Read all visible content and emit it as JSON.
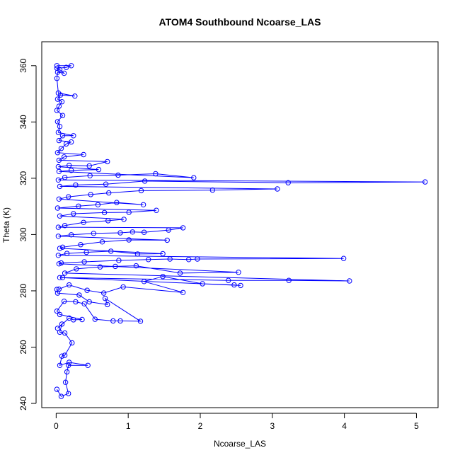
{
  "chart_data": {
    "type": "line",
    "title": "ATOM4 Southbound Ncoarse_LAS",
    "xlabel": "Ncoarse_LAS",
    "ylabel": "Theta (K)",
    "xlim": [
      -0.2,
      5.3
    ],
    "ylim": [
      238.5,
      368.5
    ],
    "x_ticks": [
      0,
      1,
      2,
      3,
      4,
      5
    ],
    "y_ticks": [
      240,
      260,
      280,
      300,
      320,
      340,
      360
    ],
    "x_tick_labels": [
      "0",
      "1",
      "2",
      "3",
      "4",
      "5"
    ],
    "y_tick_labels": [
      "240",
      "260",
      "280",
      "300",
      "320",
      "340",
      "360"
    ],
    "series": [
      {
        "color": "#0000ff",
        "marker": "circle-open",
        "line": true,
        "points": [
          [
            0.01,
            245
          ],
          [
            0.07,
            242.5
          ],
          [
            0.17,
            243.5
          ],
          [
            0.13,
            247.5
          ],
          [
            0.15,
            251.2
          ],
          [
            0.17,
            253.5
          ],
          [
            0.44,
            253.5
          ],
          [
            0.18,
            254.6
          ],
          [
            0.05,
            253.5
          ],
          [
            0.08,
            256.8
          ],
          [
            0.12,
            257.1
          ],
          [
            0.22,
            261.5
          ],
          [
            0.12,
            265
          ],
          [
            0.05,
            265.3
          ],
          [
            0.08,
            268.2
          ],
          [
            0.02,
            266.7
          ],
          [
            0.18,
            270.3
          ],
          [
            0.24,
            269.7
          ],
          [
            0.36,
            269.8
          ],
          [
            0.05,
            271.6
          ],
          [
            0.01,
            272.8
          ],
          [
            0.11,
            276.3
          ],
          [
            0.27,
            276.1
          ],
          [
            0.39,
            275.4
          ],
          [
            0.54,
            269.9
          ],
          [
            0.79,
            269.3
          ],
          [
            0.89,
            269.3
          ],
          [
            1.17,
            269.2
          ],
          [
            0.68,
            277.3
          ],
          [
            0.71,
            275.1
          ],
          [
            0.46,
            276.1
          ],
          [
            0.32,
            278.5
          ],
          [
            0.02,
            279.2
          ],
          [
            0.01,
            280.5
          ],
          [
            0.04,
            280.6
          ],
          [
            0.18,
            282.1
          ],
          [
            0.43,
            280.2
          ],
          [
            0.66,
            279.2
          ],
          [
            0.93,
            281.4
          ],
          [
            1.76,
            279.4
          ],
          [
            1.22,
            283.3
          ],
          [
            1.48,
            285.1
          ],
          [
            2.03,
            282.5
          ],
          [
            2.47,
            282.1
          ],
          [
            2.56,
            281.9
          ],
          [
            0.05,
            284.7
          ],
          [
            0.09,
            284.7
          ],
          [
            2.39,
            283.7
          ],
          [
            3.23,
            283.7
          ],
          [
            4.07,
            283.5
          ],
          [
            0.12,
            286.3
          ],
          [
            0.28,
            287.8
          ],
          [
            0.61,
            288.5
          ],
          [
            0.82,
            288.7
          ],
          [
            1.11,
            288.9
          ],
          [
            1.72,
            286.3
          ],
          [
            2.53,
            286.6
          ],
          [
            0.04,
            289.6
          ],
          [
            0.07,
            289.9
          ],
          [
            0.39,
            290.3
          ],
          [
            0.87,
            290.8
          ],
          [
            1.28,
            291.1
          ],
          [
            1.58,
            291.3
          ],
          [
            1.84,
            291.1
          ],
          [
            1.96,
            291.3
          ],
          [
            3.99,
            291.5
          ],
          [
            0.03,
            292.6
          ],
          [
            0.15,
            293.3
          ],
          [
            0.42,
            293.7
          ],
          [
            0.76,
            294.1
          ],
          [
            1.13,
            293.1
          ],
          [
            1.48,
            293.2
          ],
          [
            0.05,
            295.1
          ],
          [
            0.09,
            295.5
          ],
          [
            0.34,
            296.4
          ],
          [
            0.64,
            297.4
          ],
          [
            1.01,
            298.1
          ],
          [
            1.54,
            298.0
          ],
          [
            0.03,
            299.4
          ],
          [
            0.21,
            299.9
          ],
          [
            0.52,
            300.4
          ],
          [
            0.89,
            300.6
          ],
          [
            1.06,
            300.9
          ],
          [
            1.22,
            300.8
          ],
          [
            1.56,
            301.6
          ],
          [
            1.76,
            302.4
          ],
          [
            0.03,
            302.6
          ],
          [
            0.12,
            303.2
          ],
          [
            0.38,
            304.3
          ],
          [
            0.72,
            304.9
          ],
          [
            0.94,
            305.4
          ],
          [
            0.05,
            306.6
          ],
          [
            0.24,
            307.4
          ],
          [
            0.67,
            307.8
          ],
          [
            1.01,
            307.9
          ],
          [
            1.39,
            308.6
          ],
          [
            0.02,
            309.4
          ],
          [
            0.31,
            310.1
          ],
          [
            0.58,
            310.6
          ],
          [
            0.84,
            311.4
          ],
          [
            1.21,
            310.6
          ],
          [
            0.04,
            312.6
          ],
          [
            0.17,
            313.4
          ],
          [
            0.48,
            314.2
          ],
          [
            0.73,
            314.8
          ],
          [
            1.18,
            315.6
          ],
          [
            2.17,
            315.8
          ],
          [
            3.07,
            316.2
          ],
          [
            0.05,
            317.1
          ],
          [
            0.27,
            317.6
          ],
          [
            0.69,
            317.9
          ],
          [
            1.23,
            319.0
          ],
          [
            3.22,
            318.4
          ],
          [
            5.12,
            318.7
          ],
          [
            0.03,
            319.4
          ],
          [
            0.12,
            320.3
          ],
          [
            0.47,
            320.9
          ],
          [
            0.86,
            321.1
          ],
          [
            1.38,
            321.6
          ],
          [
            1.91,
            320.2
          ],
          [
            0.04,
            322.4
          ],
          [
            0.21,
            322.8
          ],
          [
            0.59,
            323.1
          ],
          [
            0.03,
            324.1
          ],
          [
            0.18,
            324.6
          ],
          [
            0.46,
            324.4
          ],
          [
            0.71,
            325.9
          ],
          [
            0.04,
            326.4
          ],
          [
            0.11,
            327.6
          ],
          [
            0.38,
            328.4
          ],
          [
            0.02,
            329.1
          ],
          [
            0.07,
            330.6
          ],
          [
            0.14,
            332.2
          ],
          [
            0.21,
            332.9
          ],
          [
            0.04,
            333.4
          ],
          [
            0.09,
            335.1
          ],
          [
            0.24,
            335.1
          ],
          [
            0.03,
            336.3
          ],
          [
            0.05,
            338.4
          ],
          [
            0.02,
            340.1
          ],
          [
            0.09,
            342.3
          ],
          [
            0.01,
            344.1
          ],
          [
            0.04,
            345.6
          ],
          [
            0.08,
            347.2
          ],
          [
            0.02,
            348.1
          ],
          [
            0.06,
            349.6
          ],
          [
            0.26,
            349.2
          ],
          [
            0.03,
            350.3
          ],
          [
            0.01,
            355.5
          ],
          [
            0.02,
            357.7
          ],
          [
            0.11,
            357.3
          ],
          [
            0.05,
            358.6
          ],
          [
            0.01,
            359.1
          ],
          [
            0.14,
            359.4
          ],
          [
            0.21,
            360
          ],
          [
            0.01,
            360
          ]
        ]
      }
    ]
  }
}
